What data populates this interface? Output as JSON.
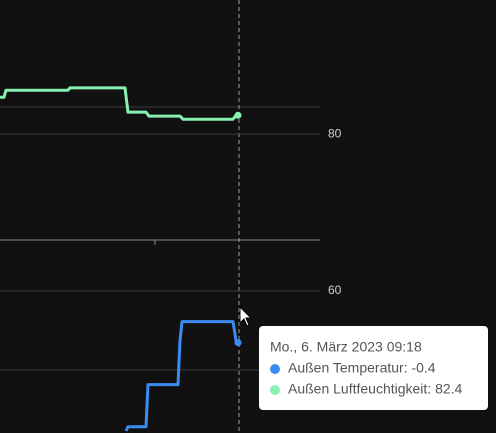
{
  "chart_data": {
    "type": "line",
    "xlim": [
      0,
      320
    ],
    "ylim": [
      41.9,
      97.1
    ],
    "yticks": [
      60,
      80
    ],
    "y2lim": [
      -0.83,
      1.23
    ],
    "grid": true,
    "series": [
      {
        "name": "Außen Temperatur",
        "color": "#3b8cf2",
        "axis": "y2",
        "x": [
          126,
          128,
          130,
          146,
          148,
          178,
          180,
          182,
          185,
          233,
          236,
          238
        ],
        "values": [
          -0.82,
          -0.8,
          -0.8,
          -0.8,
          -0.6,
          -0.6,
          -0.39,
          -0.3,
          -0.3,
          -0.3,
          -0.39,
          -0.4
        ]
      },
      {
        "name": "Außen Luftfeuchtigkeit",
        "color": "#88f0b0",
        "x": [
          0,
          4,
          6,
          68,
          70,
          125,
          128,
          146,
          149,
          180,
          183,
          233,
          236,
          238
        ],
        "values": [
          84.7,
          84.7,
          85.6,
          85.6,
          85.9,
          85.9,
          82.8,
          82.8,
          82.3,
          82.3,
          81.9,
          81.9,
          82.4,
          82.4
        ]
      }
    ],
    "tooltip": {
      "title": "Mo., 6. März 2023 09:18",
      "rows": [
        "Außen Temperatur: -0.4",
        "Außen Luftfeuchtigkeit: 82.4"
      ]
    }
  }
}
